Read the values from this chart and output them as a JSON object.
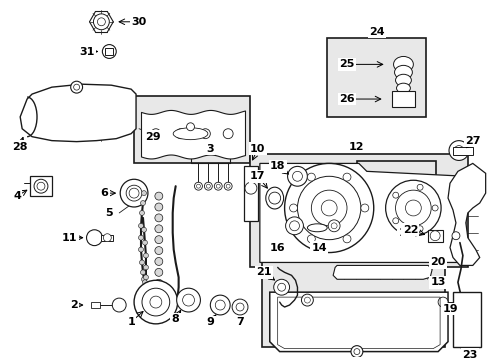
{
  "bg_color": "#ffffff",
  "fig_width": 4.89,
  "fig_height": 3.6,
  "dpi": 100,
  "lc": "#1a1a1a",
  "gray": "#888888",
  "lightgray": "#cccccc",
  "shading": "#e8e8e8"
}
